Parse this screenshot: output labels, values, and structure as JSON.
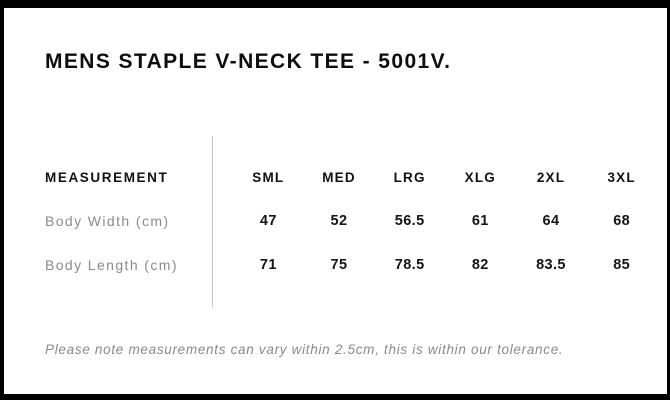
{
  "page": {
    "title": "MENS STAPLE V-NECK TEE - 5001V.",
    "tolerance_note": "Please note measurements can vary within 2.5cm, this is within our tolerance."
  },
  "size_chart": {
    "label_header": "MEASUREMENT",
    "size_headers": [
      "SML",
      "MED",
      "LRG",
      "XLG",
      "2XL",
      "3XL"
    ],
    "rows": [
      {
        "label": "Body Width (cm)",
        "values": [
          "47",
          "52",
          "56.5",
          "61",
          "64",
          "68"
        ]
      },
      {
        "label": "Body Length (cm)",
        "values": [
          "71",
          "75",
          "78.5",
          "82",
          "83.5",
          "85"
        ]
      }
    ]
  },
  "colors": {
    "background": "#ffffff",
    "border": "#000000",
    "title_text": "#0d0d0d",
    "header_text": "#111111",
    "value_text": "#151515",
    "label_text": "#8a8a8a",
    "note_text": "#8a8a8a",
    "divider": "#c9c9c9"
  }
}
